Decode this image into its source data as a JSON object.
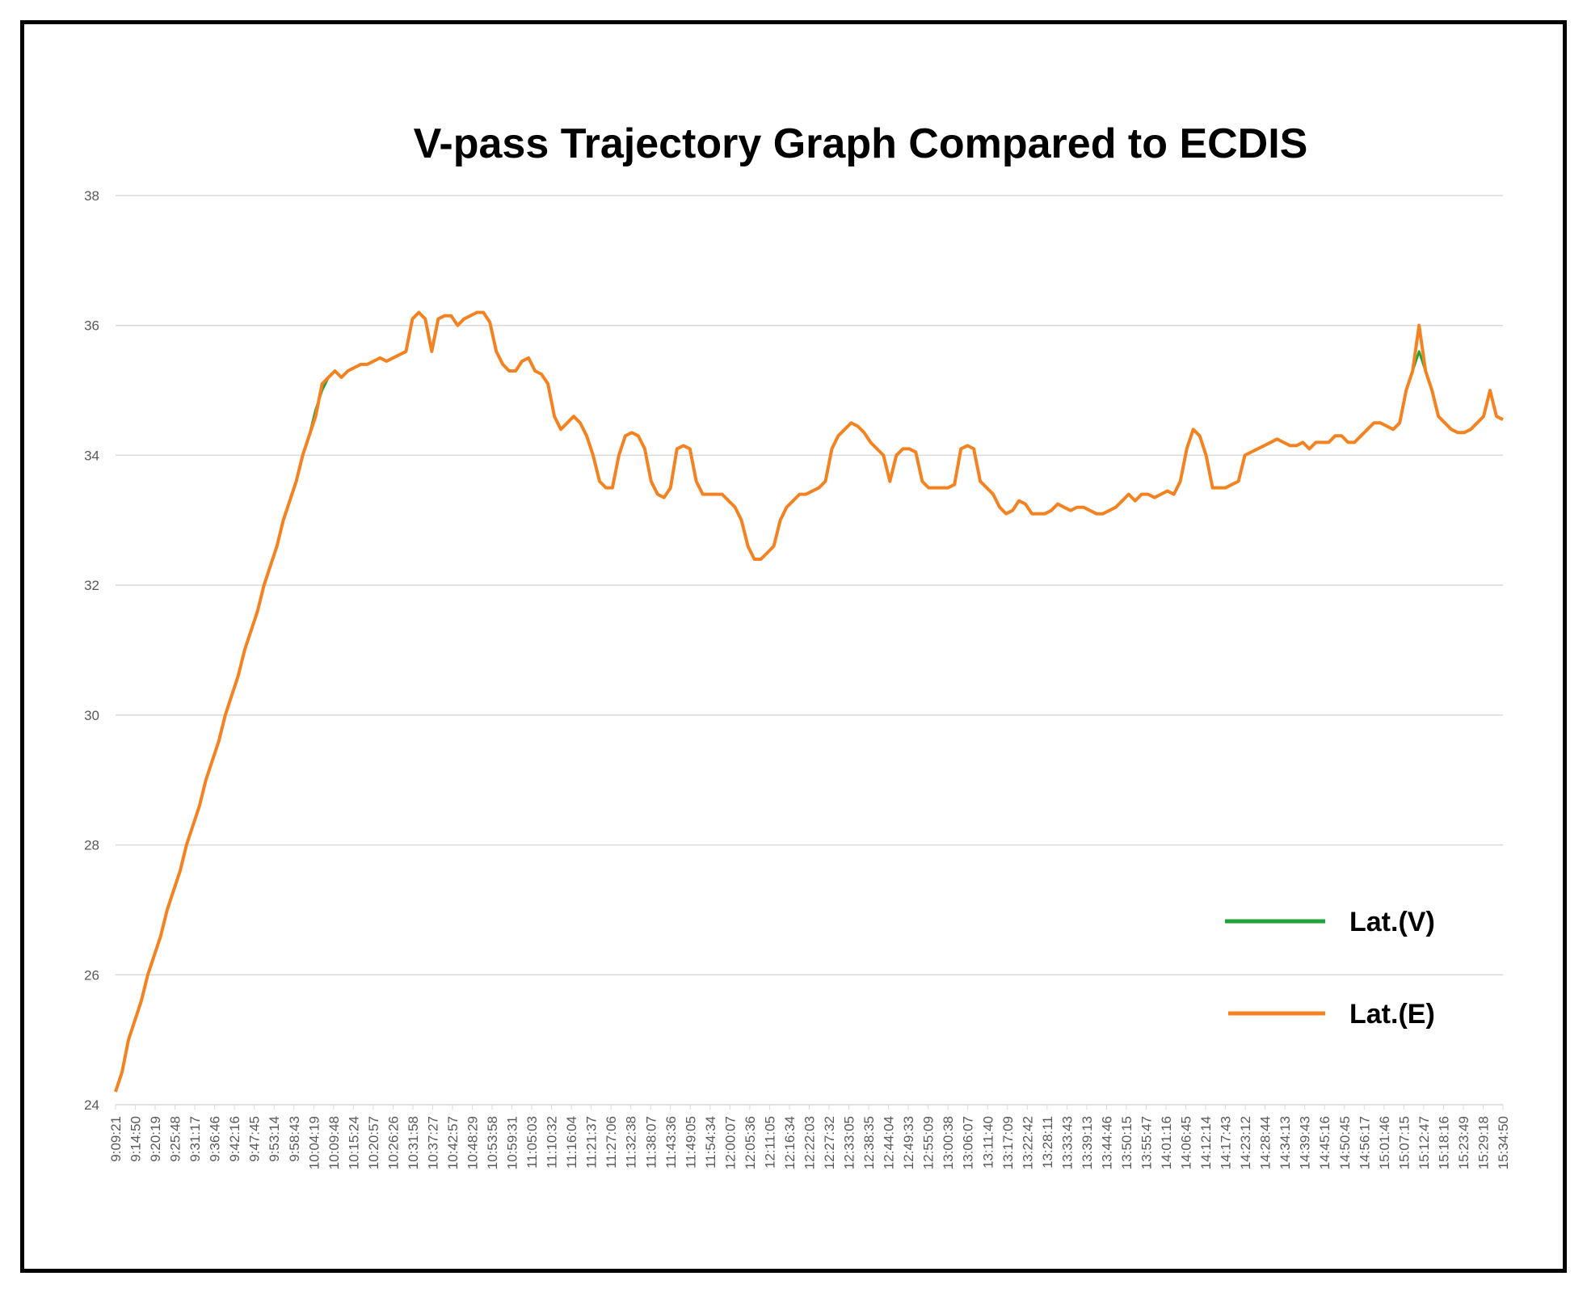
{
  "chart_data": {
    "type": "line",
    "title": "V-pass Trajectory Graph Compared to ECDIS",
    "xlabel": "",
    "ylabel": "",
    "ylim": [
      24,
      38
    ],
    "yticks": [
      24,
      26,
      28,
      30,
      32,
      34,
      36,
      38
    ],
    "grid": true,
    "legend_position": "lower-right",
    "x_tick_labels": [
      "9:09:21",
      "9:14:50",
      "9:20:19",
      "9:25:48",
      "9:31:17",
      "9:36:46",
      "9:42:16",
      "9:47:45",
      "9:53:14",
      "9:58:43",
      "10:04:19",
      "10:09:48",
      "10:15:24",
      "10:20:57",
      "10:26:26",
      "10:31:58",
      "10:37:27",
      "10:42:57",
      "10:48:29",
      "10:53:58",
      "10:59:31",
      "11:05:03",
      "11:10:32",
      "11:16:04",
      "11:21:37",
      "11:27:06",
      "11:32:38",
      "11:38:07",
      "11:43:36",
      "11:49:05",
      "11:54:34",
      "12:00:07",
      "12:05:36",
      "12:11:05",
      "12:16:34",
      "12:22:03",
      "12:27:32",
      "12:33:05",
      "12:38:35",
      "12:44:04",
      "12:49:33",
      "12:55:09",
      "13:00:38",
      "13:06:07",
      "13:11:40",
      "13:17:09",
      "13:22:42",
      "13:28:11",
      "13:33:43",
      "13:39:13",
      "13:44:46",
      "13:50:15",
      "13:55:47",
      "14:01:16",
      "14:06:45",
      "14:12:14",
      "14:17:43",
      "14:23:12",
      "14:28:44",
      "14:34:13",
      "14:39:43",
      "14:45:16",
      "14:50:45",
      "14:56:17",
      "15:01:46",
      "15:07:15",
      "15:12:47",
      "15:18:16",
      "15:23:49",
      "15:29:18",
      "15:34:50"
    ],
    "series": [
      {
        "name": "Lat.(V)",
        "color": "#22a33a",
        "values": [
          24.2,
          24.5,
          25.0,
          25.3,
          25.6,
          26.0,
          26.3,
          26.6,
          27.0,
          27.3,
          27.6,
          28.0,
          28.3,
          28.6,
          29.0,
          29.3,
          29.6,
          30.0,
          30.3,
          30.6,
          31.0,
          31.3,
          31.6,
          32.0,
          32.3,
          32.6,
          33.0,
          33.3,
          33.6,
          34.0,
          34.3,
          34.7,
          35.0,
          35.2,
          35.3,
          35.2,
          35.3,
          35.35,
          35.4,
          35.4,
          35.45,
          35.5,
          35.45,
          35.5,
          35.55,
          35.6,
          36.1,
          36.2,
          36.1,
          35.6,
          36.1,
          36.15,
          36.15,
          36.0,
          36.1,
          36.15,
          36.2,
          36.2,
          36.05,
          35.6,
          35.4,
          35.3,
          35.3,
          35.45,
          35.5,
          35.3,
          35.25,
          35.1,
          34.6,
          34.4,
          34.5,
          34.6,
          34.5,
          34.3,
          34.0,
          33.6,
          33.5,
          33.5,
          34.0,
          34.3,
          34.35,
          34.3,
          34.1,
          33.6,
          33.4,
          33.35,
          33.5,
          34.1,
          34.15,
          34.1,
          33.6,
          33.4,
          33.4,
          33.4,
          33.4,
          33.3,
          33.2,
          33.0,
          32.6,
          32.4,
          32.4,
          32.5,
          32.6,
          33.0,
          33.2,
          33.3,
          33.4,
          33.4,
          33.45,
          33.5,
          33.6,
          34.1,
          34.3,
          34.4,
          34.5,
          34.45,
          34.35,
          34.2,
          34.1,
          34.0,
          33.6,
          34.0,
          34.1,
          34.1,
          34.05,
          33.6,
          33.5,
          33.5,
          33.5,
          33.5,
          33.55,
          34.1,
          34.15,
          34.1,
          33.6,
          33.5,
          33.4,
          33.2,
          33.1,
          33.15,
          33.3,
          33.25,
          33.1,
          33.1,
          33.1,
          33.15,
          33.25,
          33.2,
          33.15,
          33.2,
          33.2,
          33.15,
          33.1,
          33.1,
          33.15,
          33.2,
          33.3,
          33.4,
          33.3,
          33.4,
          33.4,
          33.35,
          33.4,
          33.45,
          33.4,
          33.6,
          34.1,
          34.4,
          34.3,
          34.0,
          33.5,
          33.5,
          33.5,
          33.55,
          33.6,
          34.0,
          34.05,
          34.1,
          34.15,
          34.2,
          34.25,
          34.2,
          34.15,
          34.15,
          34.2,
          34.1,
          34.2,
          34.2,
          34.2,
          34.3,
          34.3,
          34.2,
          34.2,
          34.3,
          34.4,
          34.5,
          34.5,
          34.45,
          34.4,
          34.5,
          35.0,
          35.3,
          35.6,
          35.3,
          35.0,
          34.6,
          34.5,
          34.4,
          34.35,
          34.35,
          34.4,
          34.5,
          34.6,
          35.0,
          34.6,
          34.55
        ]
      },
      {
        "name": "Lat.(E)",
        "color": "#f58220",
        "values": [
          24.2,
          24.5,
          25.0,
          25.3,
          25.6,
          26.0,
          26.3,
          26.6,
          27.0,
          27.3,
          27.6,
          28.0,
          28.3,
          28.6,
          29.0,
          29.3,
          29.6,
          30.0,
          30.3,
          30.6,
          31.0,
          31.3,
          31.6,
          32.0,
          32.3,
          32.6,
          33.0,
          33.3,
          33.6,
          34.0,
          34.3,
          34.6,
          35.1,
          35.2,
          35.3,
          35.2,
          35.3,
          35.35,
          35.4,
          35.4,
          35.45,
          35.5,
          35.45,
          35.5,
          35.55,
          35.6,
          36.1,
          36.2,
          36.1,
          35.6,
          36.1,
          36.15,
          36.15,
          36.0,
          36.1,
          36.15,
          36.2,
          36.2,
          36.05,
          35.6,
          35.4,
          35.3,
          35.3,
          35.45,
          35.5,
          35.3,
          35.25,
          35.1,
          34.6,
          34.4,
          34.5,
          34.6,
          34.5,
          34.3,
          34.0,
          33.6,
          33.5,
          33.5,
          34.0,
          34.3,
          34.35,
          34.3,
          34.1,
          33.6,
          33.4,
          33.35,
          33.5,
          34.1,
          34.15,
          34.1,
          33.6,
          33.4,
          33.4,
          33.4,
          33.4,
          33.3,
          33.2,
          33.0,
          32.6,
          32.4,
          32.4,
          32.5,
          32.6,
          33.0,
          33.2,
          33.3,
          33.4,
          33.4,
          33.45,
          33.5,
          33.6,
          34.1,
          34.3,
          34.4,
          34.5,
          34.45,
          34.35,
          34.2,
          34.1,
          34.0,
          33.6,
          34.0,
          34.1,
          34.1,
          34.05,
          33.6,
          33.5,
          33.5,
          33.5,
          33.5,
          33.55,
          34.1,
          34.15,
          34.1,
          33.6,
          33.5,
          33.4,
          33.2,
          33.1,
          33.15,
          33.3,
          33.25,
          33.1,
          33.1,
          33.1,
          33.15,
          33.25,
          33.2,
          33.15,
          33.2,
          33.2,
          33.15,
          33.1,
          33.1,
          33.15,
          33.2,
          33.3,
          33.4,
          33.3,
          33.4,
          33.4,
          33.35,
          33.4,
          33.45,
          33.4,
          33.6,
          34.1,
          34.4,
          34.3,
          34.0,
          33.5,
          33.5,
          33.5,
          33.55,
          33.6,
          34.0,
          34.05,
          34.1,
          34.15,
          34.2,
          34.25,
          34.2,
          34.15,
          34.15,
          34.2,
          34.1,
          34.2,
          34.2,
          34.2,
          34.3,
          34.3,
          34.2,
          34.2,
          34.3,
          34.4,
          34.5,
          34.5,
          34.45,
          34.4,
          34.5,
          35.0,
          35.3,
          36.0,
          35.3,
          35.0,
          34.6,
          34.5,
          34.4,
          34.35,
          34.35,
          34.4,
          34.5,
          34.6,
          35.0,
          34.6,
          34.55
        ]
      }
    ]
  }
}
